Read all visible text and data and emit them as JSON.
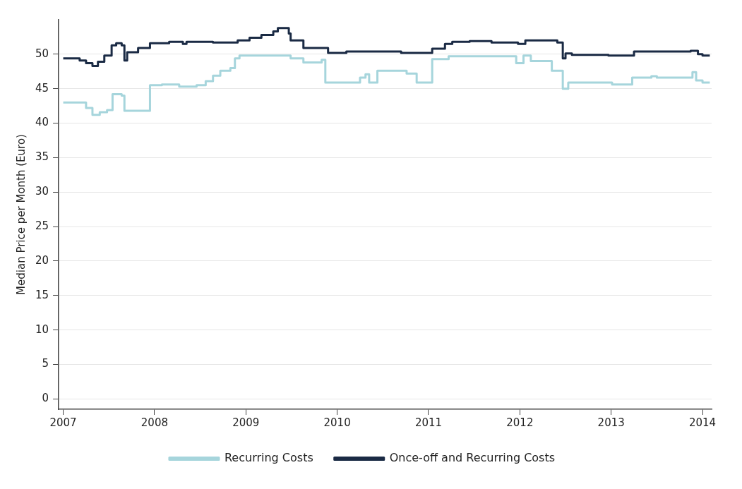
{
  "chart_data": {
    "type": "step",
    "ylabel": "Median Price per Month (Euro)",
    "xlim": [
      2006.95,
      2014.1
    ],
    "xticks": [
      2007,
      2008,
      2009,
      2010,
      2011,
      2012,
      2013,
      2014
    ],
    "ylim": [
      -1.5,
      55
    ],
    "yticks": [
      0,
      5,
      10,
      15,
      20,
      25,
      30,
      35,
      40,
      45,
      50
    ],
    "grid": "y",
    "legend": "bottom",
    "line_style": "solid",
    "marker": "none",
    "series": [
      {
        "name": "Recurring Costs",
        "color": "#a6d5dc",
        "x": [
          2007.0,
          2007.18,
          2007.25,
          2007.32,
          2007.4,
          2007.48,
          2007.54,
          2007.64,
          2007.67,
          2007.92,
          2007.95,
          2008.08,
          2008.27,
          2008.46,
          2008.56,
          2008.64,
          2008.72,
          2008.83,
          2008.88,
          2008.93,
          2009.49,
          2009.63,
          2009.83,
          2009.87,
          2010.25,
          2010.31,
          2010.35,
          2010.44,
          2010.76,
          2010.87,
          2011.04,
          2011.22,
          2011.96,
          2012.04,
          2012.12,
          2012.35,
          2012.47,
          2012.53,
          2013.01,
          2013.23,
          2013.44,
          2013.5,
          2013.89,
          2013.93,
          2014.0,
          2014.08
        ],
        "values": [
          43.0,
          43.0,
          42.2,
          41.2,
          41.6,
          41.9,
          44.2,
          44.0,
          41.8,
          41.8,
          45.5,
          45.6,
          45.3,
          45.5,
          46.1,
          46.9,
          47.6,
          48.0,
          49.4,
          49.8,
          49.4,
          48.8,
          49.2,
          45.9,
          46.6,
          47.1,
          45.9,
          47.6,
          47.2,
          45.9,
          49.3,
          49.7,
          48.7,
          49.8,
          49.0,
          47.6,
          45.0,
          45.9,
          45.6,
          46.6,
          46.8,
          46.6,
          47.4,
          46.2,
          45.9,
          45.9
        ]
      },
      {
        "name": "Once-off and Recurring Costs",
        "color": "#1a2a44",
        "x": [
          2007.0,
          2007.18,
          2007.25,
          2007.32,
          2007.38,
          2007.45,
          2007.53,
          2007.58,
          2007.64,
          2007.67,
          2007.7,
          2007.82,
          2007.95,
          2008.16,
          2008.31,
          2008.35,
          2008.64,
          2008.91,
          2009.04,
          2009.17,
          2009.3,
          2009.35,
          2009.47,
          2009.49,
          2009.63,
          2009.9,
          2010.1,
          2010.7,
          2011.04,
          2011.18,
          2011.26,
          2011.45,
          2011.69,
          2011.98,
          2012.06,
          2012.41,
          2012.47,
          2012.5,
          2012.57,
          2012.97,
          2013.25,
          2013.87,
          2013.95,
          2014.0,
          2014.08
        ],
        "values": [
          49.4,
          49.1,
          48.7,
          48.3,
          48.9,
          49.8,
          51.3,
          51.6,
          51.3,
          49.1,
          50.3,
          50.9,
          51.6,
          51.8,
          51.5,
          51.8,
          51.7,
          52.0,
          52.4,
          52.8,
          53.3,
          53.8,
          53.0,
          52.0,
          50.9,
          50.2,
          50.4,
          50.2,
          50.8,
          51.5,
          51.8,
          51.9,
          51.7,
          51.5,
          52.0,
          51.7,
          49.4,
          50.1,
          49.9,
          49.8,
          50.4,
          50.5,
          50.0,
          49.8,
          49.8
        ]
      }
    ]
  }
}
